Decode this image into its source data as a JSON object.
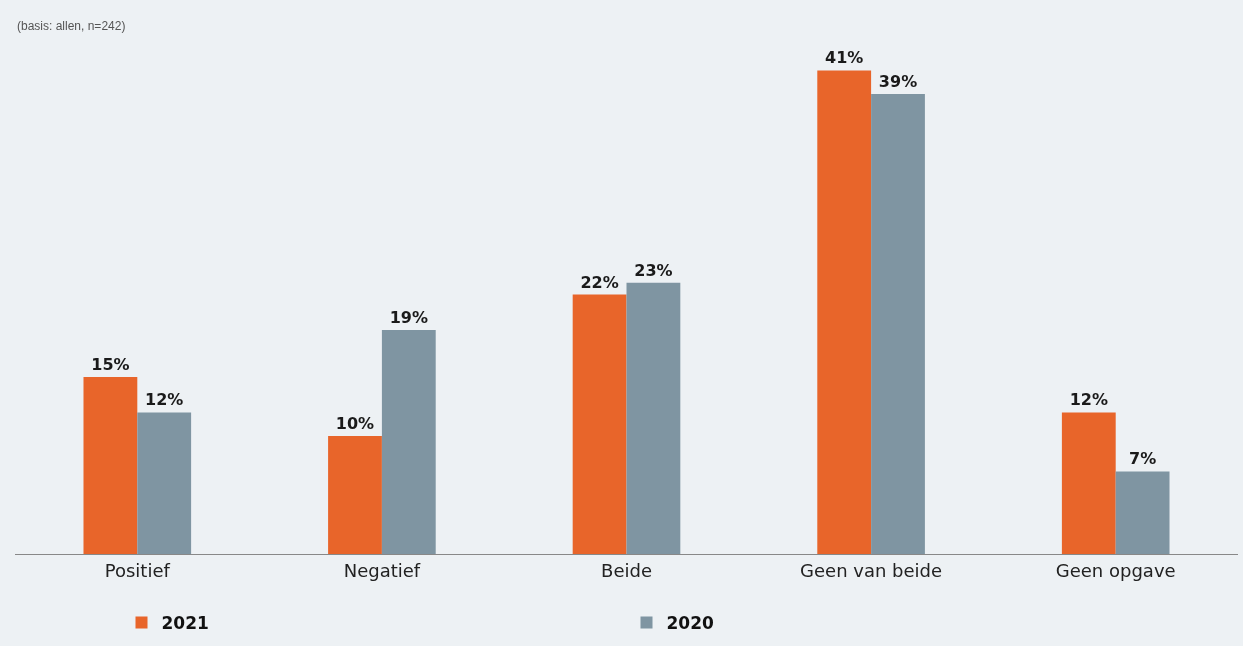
{
  "chart_data": {
    "type": "bar",
    "subtitle": "(basis: allen, n=242)",
    "categories": [
      "Positief",
      "Negatief",
      "Beide",
      "Geen van beide",
      "Geen opgave"
    ],
    "series": [
      {
        "name": "2021",
        "color": "#e8652a",
        "values": [
          15,
          10,
          22,
          41,
          12
        ],
        "value_labels": [
          "15%",
          "10%",
          "22%",
          "41%",
          "12%"
        ]
      },
      {
        "name": "2020",
        "color": "#7f95a2",
        "values": [
          12,
          19,
          23,
          39,
          7
        ],
        "value_labels": [
          "12%",
          "19%",
          "23%",
          "39%",
          "7%"
        ]
      }
    ],
    "legend": "bottom",
    "grid": false
  }
}
